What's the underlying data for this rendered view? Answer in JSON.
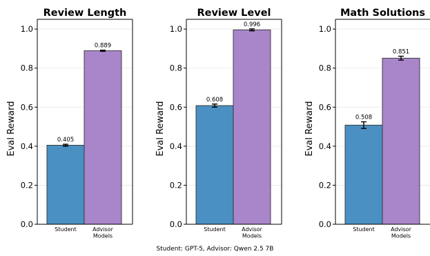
{
  "chart_data": [
    {
      "type": "bar",
      "title": "Review Length",
      "ylabel": "Eval Reward",
      "ylim": [
        0,
        1.05
      ],
      "yticks": [
        "0.0",
        "0.2",
        "0.4",
        "0.6",
        "0.8",
        "1.0"
      ],
      "grid": true,
      "categories": [
        "Student",
        "Advisor Models"
      ],
      "values": [
        0.405,
        0.889
      ],
      "errors": [
        0.005,
        0.003
      ],
      "value_labels": [
        "0.405",
        "0.889"
      ],
      "colors": [
        "#4a90c2",
        "#a985c9"
      ]
    },
    {
      "type": "bar",
      "title": "Review Level",
      "ylabel": "Eval Reward",
      "ylim": [
        0,
        1.05
      ],
      "yticks": [
        "0.0",
        "0.2",
        "0.4",
        "0.6",
        "0.8",
        "1.0"
      ],
      "grid": true,
      "categories": [
        "Student",
        "Advisor Models"
      ],
      "values": [
        0.608,
        0.996
      ],
      "errors": [
        0.008,
        0.005
      ],
      "value_labels": [
        "0.608",
        "0.996"
      ],
      "colors": [
        "#4a90c2",
        "#a985c9"
      ]
    },
    {
      "type": "bar",
      "title": "Math Solutions",
      "ylabel": "Eval Reward",
      "ylim": [
        0,
        1.05
      ],
      "yticks": [
        "0.0",
        "0.2",
        "0.4",
        "0.6",
        "0.8",
        "1.0"
      ],
      "grid": true,
      "categories": [
        "Student",
        "Advisor Models"
      ],
      "values": [
        0.508,
        0.851
      ],
      "errors": [
        0.017,
        0.01
      ],
      "value_labels": [
        "0.508",
        "0.851"
      ],
      "colors": [
        "#4a90c2",
        "#a985c9"
      ]
    }
  ],
  "caption": "Student: GPT-5, Advisor: Qwen 2.5 7B"
}
